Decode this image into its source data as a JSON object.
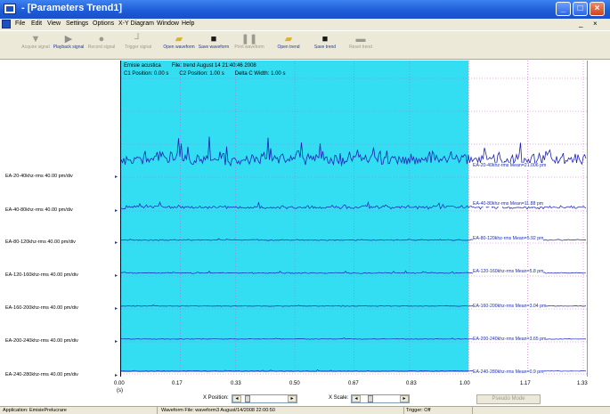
{
  "window": {
    "title": "- [Parameters Trend1]"
  },
  "menu": [
    "File",
    "Edit",
    "View",
    "Settings",
    "Options",
    "X-Y Diagram",
    "Window",
    "Help"
  ],
  "mdi_controls": [
    "_",
    "×"
  ],
  "toolbar": [
    {
      "label": "Acquire signal",
      "enabled": false,
      "icon": "down-triangle-icon"
    },
    {
      "label": "Playback signal",
      "enabled": true,
      "icon": "play-icon"
    },
    {
      "label": "Record signal",
      "enabled": false,
      "icon": "record-icon"
    },
    {
      "label": "Trigger signal",
      "enabled": false,
      "icon": "trigger-icon"
    },
    {
      "label": "Open waveform",
      "enabled": true,
      "icon": "open-folder-icon"
    },
    {
      "label": "Save waveform",
      "enabled": true,
      "icon": "floppy-disk-icon"
    },
    {
      "label": "Print waveform",
      "enabled": false,
      "icon": "pause-icon"
    },
    {
      "label": "Open trend",
      "enabled": true,
      "icon": "open-folder-icon"
    },
    {
      "label": "Save trend",
      "enabled": true,
      "icon": "floppy-disk-icon"
    },
    {
      "label": "Reset trend",
      "enabled": false,
      "icon": "reset-icon"
    }
  ],
  "info": {
    "line1_a": "Emisie acustica",
    "line1_b": "File: trend August 14 21:40:46 2008",
    "c1": "C1 Position: 0.00 s",
    "c2": "C2 Position: 1.00 s",
    "delta": "Delta C Width: 1.00 s"
  },
  "channels": [
    {
      "label": "EA-20-40khz-rms 40.00 pm/div",
      "mean": "EA-20-40khz-rms Mean=21.006 pm",
      "amplitude": "high"
    },
    {
      "label": "EA-40-80khz-rms 40.00 pm/div",
      "mean": "EA-40-80khz-rms Mean=11.88 pm",
      "amplitude": "medium"
    },
    {
      "label": "EA-80-120khz-rms 40.00 pm/div",
      "mean": "EA-80-120khz-rms Mean=5.92 pm",
      "amplitude": "low"
    },
    {
      "label": "EA-120-160khz-rms 40.00 pm/div",
      "mean": "EA-120-160khz-rms Mean=5.8 pm",
      "amplitude": "low"
    },
    {
      "label": "EA-160-200khz-rms 40.00 pm/div",
      "mean": "EA-160-200khz-rms Mean=3.04 pm",
      "amplitude": "very-low"
    },
    {
      "label": "EA-200-240khz-rms 40.00 pm/div",
      "mean": "EA-200-240khz-rms Mean=3.65 pm",
      "amplitude": "very-low"
    },
    {
      "label": "EA-240-280khz-rms 40.00 pm/div",
      "mean": "EA-240-280khz-rms Mean=0.9 pm",
      "amplitude": "very-low"
    }
  ],
  "cursor_region": {
    "start": 0.0,
    "end": 1.0,
    "color": "#33ddf2"
  },
  "trace_color": "#1a22b5",
  "x_ticks": [
    "0.00",
    "0.17",
    "0.33",
    "0.50",
    "0.67",
    "0.83",
    "1.00",
    "1.17",
    "1.33"
  ],
  "x_unit": "(s)",
  "controls": {
    "x_position_label": "X Position:",
    "x_scale_label": "X Scale:",
    "pseudo_button": "Pseudo Mode"
  },
  "status": {
    "app": "Application: EmisiePrelucrare",
    "file": "Waveform File: waveform3 August/14/2008 22:00:50",
    "trigger": "Trigger: Off"
  }
}
